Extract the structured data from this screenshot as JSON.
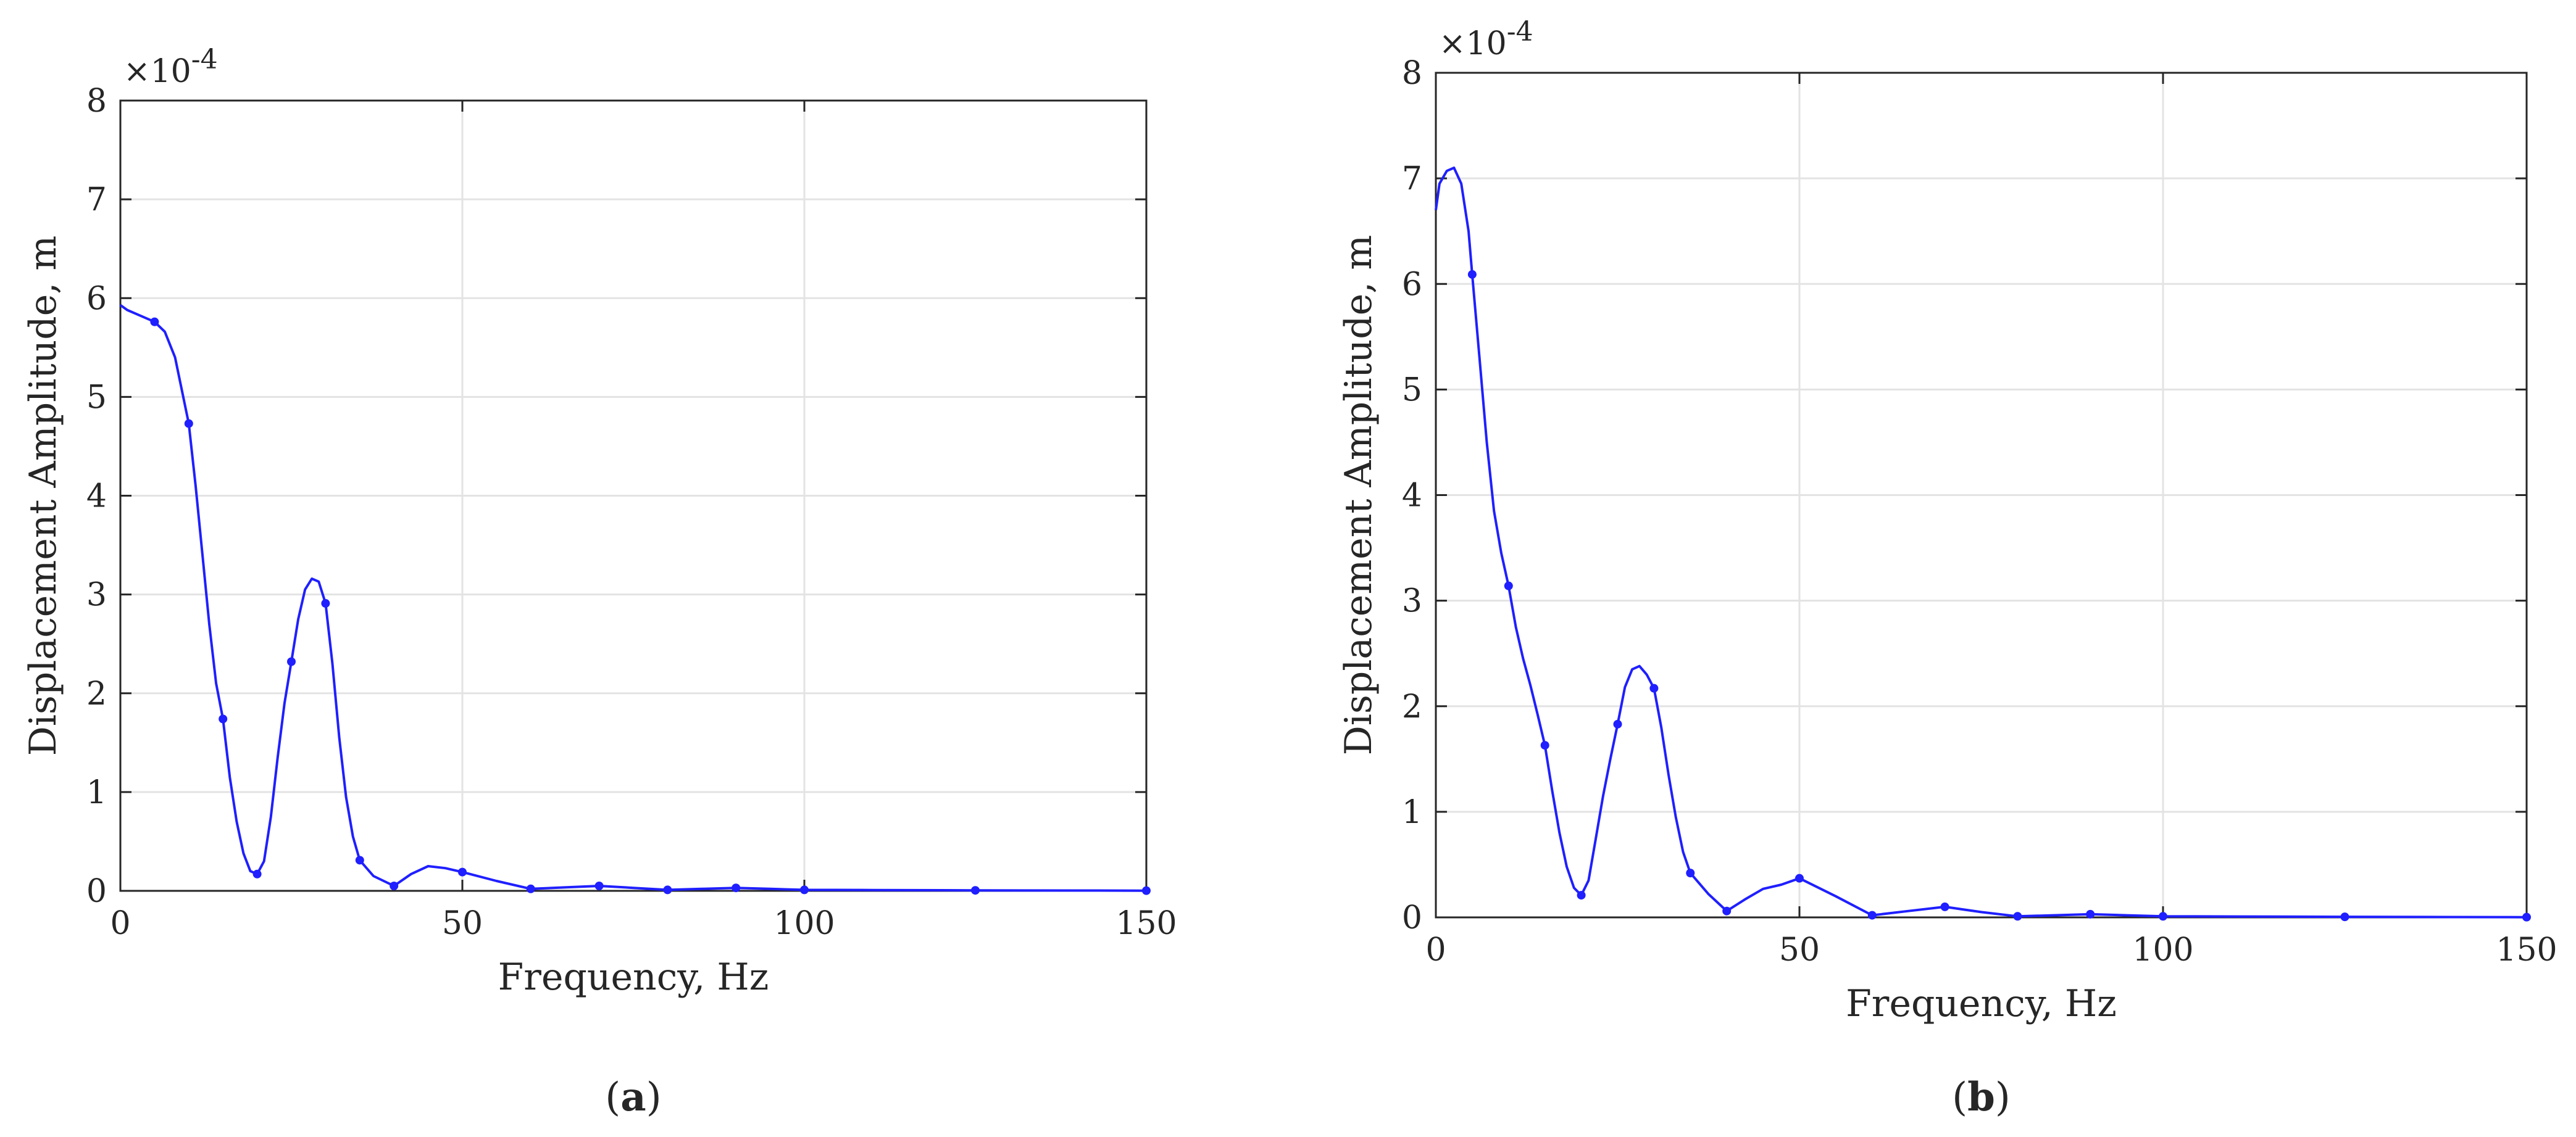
{
  "chart_data": [
    {
      "type": "line",
      "panel_label": "a",
      "xlabel": "Frequency, Hz",
      "ylabel": "Displacement Amplitude, m",
      "y_multiplier": "×10",
      "y_exponent": "-4",
      "xlim": [
        0,
        150
      ],
      "ylim": [
        0,
        8
      ],
      "x_ticks": [
        "0",
        "50",
        "100",
        "150"
      ],
      "y_ticks": [
        "0",
        "1",
        "2",
        "3",
        "4",
        "5",
        "6",
        "7",
        "8"
      ],
      "grid": true,
      "line_color": "#1f1fff",
      "series": [
        {
          "markers": [
            [
              5,
              5.76
            ],
            [
              10,
              4.73
            ],
            [
              15,
              1.74
            ],
            [
              20,
              0.17
            ],
            [
              25,
              2.32
            ],
            [
              30,
              2.91
            ],
            [
              35,
              0.31
            ],
            [
              40,
              0.05
            ],
            [
              50,
              0.19
            ],
            [
              60,
              0.02
            ],
            [
              70,
              0.05
            ],
            [
              80,
              0.01
            ],
            [
              90,
              0.03
            ],
            [
              100,
              0.01
            ],
            [
              125,
              0.005
            ],
            [
              150,
              0.002
            ]
          ],
          "curve": [
            [
              0,
              5.93
            ],
            [
              1,
              5.88
            ],
            [
              3,
              5.82
            ],
            [
              5,
              5.76
            ],
            [
              6.5,
              5.66
            ],
            [
              8,
              5.4
            ],
            [
              10,
              4.73
            ],
            [
              11,
              4.1
            ],
            [
              12,
              3.4
            ],
            [
              13,
              2.7
            ],
            [
              14,
              2.1
            ],
            [
              15,
              1.74
            ],
            [
              16,
              1.15
            ],
            [
              17,
              0.7
            ],
            [
              18,
              0.38
            ],
            [
              19,
              0.2
            ],
            [
              20,
              0.17
            ],
            [
              21,
              0.3
            ],
            [
              22,
              0.75
            ],
            [
              23,
              1.35
            ],
            [
              24,
              1.9
            ],
            [
              25,
              2.32
            ],
            [
              26,
              2.75
            ],
            [
              27,
              3.05
            ],
            [
              28,
              3.16
            ],
            [
              29,
              3.13
            ],
            [
              30,
              2.91
            ],
            [
              31,
              2.3
            ],
            [
              32,
              1.55
            ],
            [
              33,
              0.95
            ],
            [
              34,
              0.55
            ],
            [
              35,
              0.31
            ],
            [
              37,
              0.15
            ],
            [
              40,
              0.05
            ],
            [
              42.5,
              0.17
            ],
            [
              45,
              0.25
            ],
            [
              47.5,
              0.23
            ],
            [
              50,
              0.19
            ],
            [
              55,
              0.1
            ],
            [
              60,
              0.02
            ],
            [
              65,
              0.035
            ],
            [
              70,
              0.05
            ],
            [
              75,
              0.03
            ],
            [
              80,
              0.01
            ],
            [
              85,
              0.02
            ],
            [
              90,
              0.03
            ],
            [
              95,
              0.02
            ],
            [
              100,
              0.01
            ],
            [
              110,
              0.008
            ],
            [
              125,
              0.005
            ],
            [
              140,
              0.003
            ],
            [
              150,
              0.002
            ]
          ]
        }
      ]
    },
    {
      "type": "line",
      "panel_label": "b",
      "xlabel": "Frequency, Hz",
      "ylabel": "Displacement Amplitude, m",
      "y_multiplier": "×10",
      "y_exponent": "-4",
      "xlim": [
        0,
        150
      ],
      "ylim": [
        0,
        8
      ],
      "x_ticks": [
        "0",
        "50",
        "100",
        "150"
      ],
      "y_ticks": [
        "0",
        "1",
        "2",
        "3",
        "4",
        "5",
        "6",
        "7",
        "8"
      ],
      "grid": true,
      "line_color": "#1f1fff",
      "series": [
        {
          "markers": [
            [
              5,
              6.09
            ],
            [
              10,
              3.14
            ],
            [
              15,
              1.63
            ],
            [
              20,
              0.21
            ],
            [
              25,
              1.83
            ],
            [
              30,
              2.17
            ],
            [
              35,
              0.42
            ],
            [
              40,
              0.06
            ],
            [
              50,
              0.37
            ],
            [
              60,
              0.02
            ],
            [
              70,
              0.1
            ],
            [
              80,
              0.01
            ],
            [
              90,
              0.03
            ],
            [
              100,
              0.01
            ],
            [
              125,
              0.005
            ],
            [
              150,
              0.002
            ]
          ],
          "curve": [
            [
              0,
              6.7
            ],
            [
              0.5,
              6.95
            ],
            [
              1.5,
              7.07
            ],
            [
              2.5,
              7.1
            ],
            [
              3.5,
              6.95
            ],
            [
              4.5,
              6.5
            ],
            [
              5,
              6.09
            ],
            [
              6,
              5.3
            ],
            [
              7,
              4.5
            ],
            [
              8,
              3.85
            ],
            [
              9,
              3.45
            ],
            [
              10,
              3.14
            ],
            [
              11,
              2.75
            ],
            [
              12,
              2.45
            ],
            [
              13,
              2.2
            ],
            [
              14,
              1.92
            ],
            [
              15,
              1.63
            ],
            [
              16,
              1.2
            ],
            [
              17,
              0.8
            ],
            [
              18,
              0.48
            ],
            [
              19,
              0.28
            ],
            [
              20,
              0.21
            ],
            [
              21,
              0.35
            ],
            [
              22,
              0.75
            ],
            [
              23,
              1.15
            ],
            [
              24,
              1.5
            ],
            [
              25,
              1.83
            ],
            [
              26,
              2.18
            ],
            [
              27,
              2.35
            ],
            [
              28,
              2.38
            ],
            [
              29,
              2.3
            ],
            [
              30,
              2.17
            ],
            [
              31,
              1.8
            ],
            [
              32,
              1.35
            ],
            [
              33,
              0.95
            ],
            [
              34,
              0.62
            ],
            [
              35,
              0.42
            ],
            [
              37.5,
              0.22
            ],
            [
              40,
              0.06
            ],
            [
              42.5,
              0.17
            ],
            [
              45,
              0.27
            ],
            [
              47.5,
              0.31
            ],
            [
              50,
              0.37
            ],
            [
              55,
              0.2
            ],
            [
              60,
              0.02
            ],
            [
              65,
              0.06
            ],
            [
              70,
              0.1
            ],
            [
              75,
              0.05
            ],
            [
              80,
              0.01
            ],
            [
              85,
              0.02
            ],
            [
              90,
              0.03
            ],
            [
              95,
              0.02
            ],
            [
              100,
              0.01
            ],
            [
              110,
              0.008
            ],
            [
              125,
              0.005
            ],
            [
              140,
              0.003
            ],
            [
              150,
              0.002
            ]
          ]
        }
      ]
    }
  ]
}
